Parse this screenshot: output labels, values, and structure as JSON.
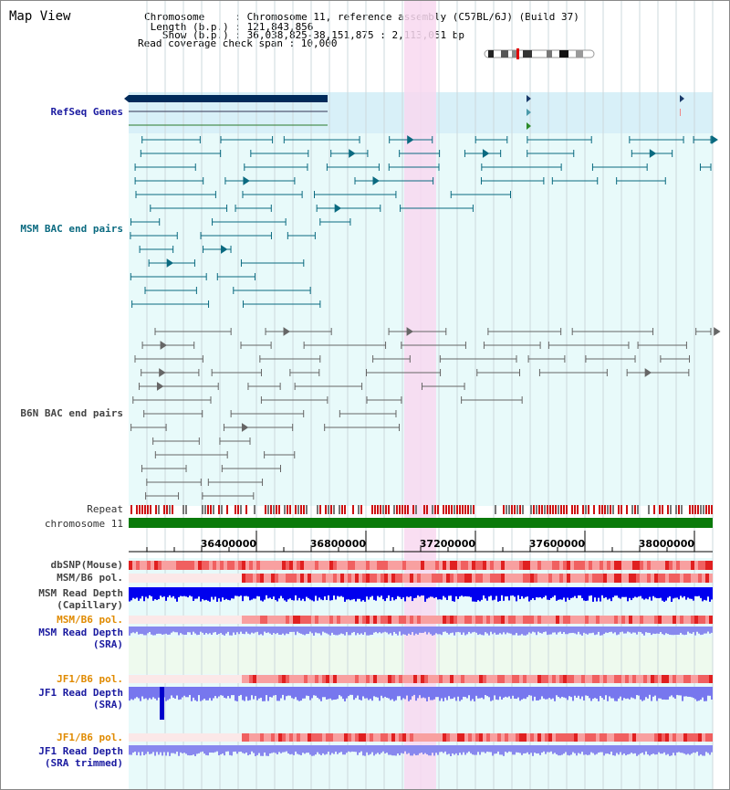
{
  "header": {
    "title": "Map View",
    "chromosome_line": "Chromosome     : Chromosome 11, reference assembly (C57BL/6J) (Build 37)",
    "length_line": " Length (b.p.) : 121,843,856",
    "show_line": "   Show (b.p.) : 36,038,825-38,151,875 : 2,113,051 bp",
    "span_line": "Read coverage check span : 10,000"
  },
  "labels": {
    "refseq": "RefSeq Genes",
    "msm_bac": "MSM BAC end pairs",
    "b6n_bac": "B6N BAC end pairs",
    "repeat": "Repeat",
    "chromosome": "chromosome 11",
    "dbsnp": "dbSNP(Mouse)",
    "msm_pol_1": "MSM/B6 pol.",
    "msm_depth_cap_1": "MSM Read Depth",
    "msm_depth_cap_2": "(Capillary)",
    "msm_pol_2": "MSM/B6 pol.",
    "msm_depth_sra_1": "MSM Read Depth",
    "msm_depth_sra_2": "(SRA)",
    "jf1_pol_1": "JF1/B6 pol.",
    "jf1_depth_sra_1": "JF1 Read Depth",
    "jf1_depth_sra_2": "(SRA)",
    "jf1_pol_2": "JF1/B6 pol.",
    "jf1_depth_trim_1": "JF1 Read Depth",
    "jf1_depth_trim_2": "(SRA trimmed)"
  },
  "axis": {
    "ticks": [
      "36400000",
      "36800000",
      "37200000",
      "37600000",
      "38000000"
    ]
  },
  "colors": {
    "refseq_bg": "#d8f0f8",
    "bac_bg": "#e8fafa",
    "highlight": "#f8d8f0",
    "chromosome_bar": "#0a7a0a",
    "msm_track": "#0a6a80",
    "b6n_track": "#555555",
    "depth_dark": "#0000ee",
    "depth_light": "#8888ee",
    "pol_red": "#ee3333"
  }
}
